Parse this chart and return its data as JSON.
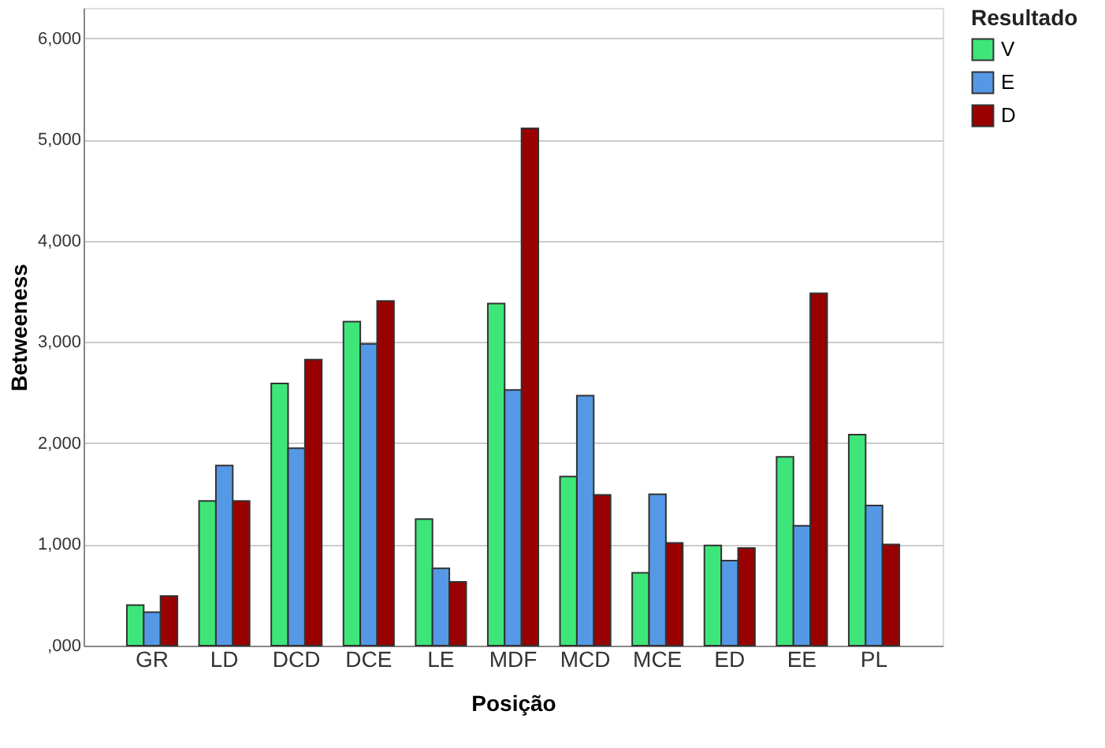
{
  "chart_data": {
    "type": "bar",
    "xlabel": "Posição",
    "ylabel": "Betweeness",
    "legend_title": "Resultado",
    "legend": "top right",
    "grid": "y",
    "categories": [
      "GR",
      "LD",
      "DCD",
      "DCE",
      "LE",
      "MDF",
      "MCD",
      "MCE",
      "ED",
      "EE",
      "PL"
    ],
    "series": [
      {
        "name": "V",
        "color": "#3ee67a",
        "values": [
          400,
          1430,
          2590,
          3200,
          1250,
          3380,
          1670,
          720,
          990,
          1865,
          2085
        ]
      },
      {
        "name": "E",
        "color": "#5599e6",
        "values": [
          330,
          1780,
          1950,
          2980,
          765,
          2525,
          2470,
          1495,
          840,
          1185,
          1385
        ]
      },
      {
        "name": "D",
        "color": "#990000",
        "values": [
          490,
          1430,
          2825,
          3405,
          630,
          5110,
          1490,
          1015,
          965,
          3480,
          1000
        ]
      }
    ],
    "ylim": [
      0,
      6300
    ],
    "yticks": [
      {
        "value": 0,
        "label": ",000"
      },
      {
        "value": 1000,
        "label": "1,000"
      },
      {
        "value": 2000,
        "label": "2,000"
      },
      {
        "value": 3000,
        "label": "3,000"
      },
      {
        "value": 4000,
        "label": "4,000"
      },
      {
        "value": 5000,
        "label": "5,000"
      },
      {
        "value": 6000,
        "label": "6,000"
      }
    ]
  }
}
